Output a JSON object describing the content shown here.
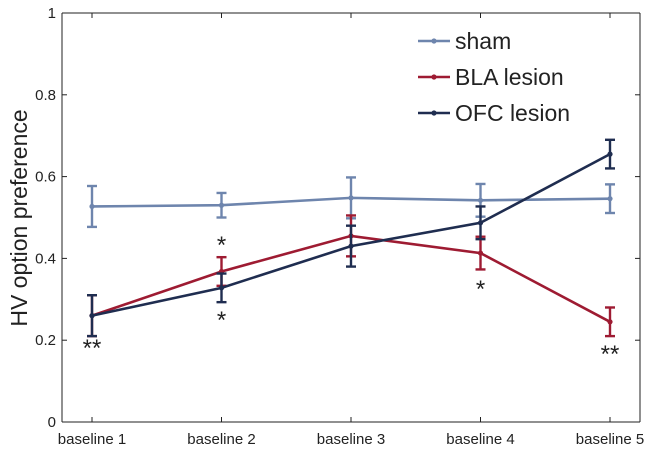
{
  "chart_data": {
    "type": "line",
    "title": "",
    "xlabel": "",
    "ylabel": "HV option preference",
    "categories": [
      "baseline 1",
      "baseline 2",
      "baseline 3",
      "baseline 4",
      "baseline 5"
    ],
    "ylim": [
      0,
      1
    ],
    "yticks": [
      0,
      0.2,
      0.4,
      0.6,
      0.8,
      1
    ],
    "ytick_labels": [
      "0",
      "0.2",
      "0.4",
      "0.6",
      "0.8",
      "1"
    ],
    "grid": false,
    "legend_position": "top-right",
    "series": [
      {
        "name": "sham",
        "color": "#6e85ad",
        "values": [
          0.527,
          0.53,
          0.548,
          0.542,
          0.546
        ],
        "errors": [
          0.05,
          0.03,
          0.05,
          0.04,
          0.035
        ]
      },
      {
        "name": "BLA lesion",
        "color": "#9e1b32",
        "values": [
          0.26,
          0.368,
          0.455,
          0.413,
          0.245
        ],
        "errors": [
          0.05,
          0.035,
          0.05,
          0.04,
          0.035
        ]
      },
      {
        "name": "OFC lesion",
        "color": "#1f2d50",
        "values": [
          0.26,
          0.328,
          0.43,
          0.487,
          0.655
        ],
        "errors": [
          0.05,
          0.035,
          0.05,
          0.04,
          0.035
        ]
      }
    ],
    "annotations": [
      {
        "text": "**",
        "category_index": 0,
        "position": "below"
      },
      {
        "text": "*",
        "category_index": 1,
        "position": "above"
      },
      {
        "text": "*",
        "category_index": 1,
        "position": "below"
      },
      {
        "text": "*",
        "category_index": 3,
        "position": "below"
      },
      {
        "text": "**",
        "category_index": 4,
        "position": "below"
      }
    ]
  }
}
